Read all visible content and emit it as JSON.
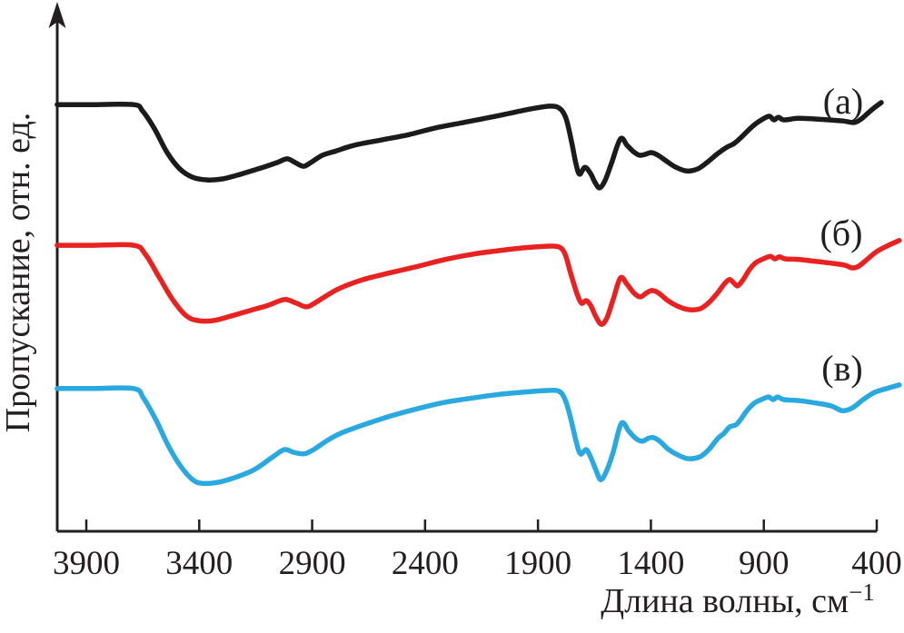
{
  "chart_data": {
    "type": "line",
    "title": "",
    "xlabel_main": "Длина волны, см",
    "xlabel_sup": "−1",
    "ylabel": "Пропускание, отн. ед.",
    "x_ticks": [
      3900,
      3400,
      2900,
      2400,
      1900,
      1400,
      900,
      400
    ],
    "xlim": [
      4030,
      300
    ],
    "ylim": [
      0,
      100
    ],
    "grid": false,
    "legend_position": "none",
    "axis_color": "#231f20",
    "series": [
      {
        "name": "spectrum-a",
        "label": "(а)",
        "color": "#1b1b1b",
        "label_w": 549,
        "label_t": 79.3,
        "points": [
          [
            4029,
            81
          ],
          [
            3880,
            81
          ],
          [
            3691,
            81
          ],
          [
            3651,
            79.8
          ],
          [
            3598,
            76.4
          ],
          [
            3542,
            71.9
          ],
          [
            3486,
            68.8
          ],
          [
            3429,
            67.2
          ],
          [
            3365,
            66.7
          ],
          [
            3297,
            66.9
          ],
          [
            3216,
            67.8
          ],
          [
            3124,
            69
          ],
          [
            3055,
            70
          ],
          [
            3011,
            70.7
          ],
          [
            2975,
            70
          ],
          [
            2939,
            69.3
          ],
          [
            2906,
            70
          ],
          [
            2854,
            71.4
          ],
          [
            2794,
            72.2
          ],
          [
            2713,
            73.3
          ],
          [
            2592,
            74.3
          ],
          [
            2472,
            75.3
          ],
          [
            2351,
            76.6
          ],
          [
            2230,
            77.6
          ],
          [
            2110,
            78.6
          ],
          [
            2009,
            79.5
          ],
          [
            1929,
            80.2
          ],
          [
            1848,
            80.7
          ],
          [
            1804,
            80.3
          ],
          [
            1776,
            78.4
          ],
          [
            1752,
            74.1
          ],
          [
            1732,
            69.8
          ],
          [
            1716,
            67.8
          ],
          [
            1692,
            69.1
          ],
          [
            1667,
            67.9
          ],
          [
            1647,
            66.2
          ],
          [
            1627,
            65.2
          ],
          [
            1603,
            66.6
          ],
          [
            1575,
            69.8
          ],
          [
            1535,
            74.5
          ],
          [
            1506,
            73.3
          ],
          [
            1478,
            72.1
          ],
          [
            1450,
            71.4
          ],
          [
            1422,
            71.6
          ],
          [
            1398,
            71.9
          ],
          [
            1369,
            71.4
          ],
          [
            1329,
            70.2
          ],
          [
            1289,
            69.1
          ],
          [
            1241,
            68.4
          ],
          [
            1193,
            68.8
          ],
          [
            1152,
            70
          ],
          [
            1104,
            71.7
          ],
          [
            1064,
            72.9
          ],
          [
            1032,
            73.6
          ],
          [
            1000,
            74.8
          ],
          [
            967,
            76.2
          ],
          [
            935,
            77.4
          ],
          [
            903,
            78.3
          ],
          [
            875,
            78.8
          ],
          [
            855,
            78.1
          ],
          [
            835,
            78.6
          ],
          [
            811,
            78.1
          ],
          [
            750,
            78.4
          ],
          [
            682,
            78.3
          ],
          [
            613,
            78.1
          ],
          [
            549,
            77.9
          ],
          [
            500,
            77.6
          ],
          [
            468,
            78.3
          ],
          [
            436,
            79.5
          ],
          [
            408,
            80.5
          ],
          [
            380,
            81.4
          ]
        ]
      },
      {
        "name": "spectrum-b",
        "label": "(б)",
        "color": "#e82220",
        "label_w": 557,
        "label_t": 54.3,
        "points": [
          [
            4029,
            54.3
          ],
          [
            3880,
            54.3
          ],
          [
            3691,
            54.3
          ],
          [
            3639,
            52.6
          ],
          [
            3578,
            48.3
          ],
          [
            3518,
            44
          ],
          [
            3457,
            40.9
          ],
          [
            3405,
            40
          ],
          [
            3337,
            40
          ],
          [
            3256,
            40.9
          ],
          [
            3176,
            41.9
          ],
          [
            3095,
            42.9
          ],
          [
            3023,
            44
          ],
          [
            2975,
            43.4
          ],
          [
            2926,
            42.6
          ],
          [
            2886,
            43.4
          ],
          [
            2834,
            44.8
          ],
          [
            2774,
            46.2
          ],
          [
            2673,
            47.8
          ],
          [
            2552,
            49.1
          ],
          [
            2432,
            50.3
          ],
          [
            2311,
            51.6
          ],
          [
            2190,
            52.6
          ],
          [
            2070,
            53.3
          ],
          [
            1969,
            53.8
          ],
          [
            1868,
            54.1
          ],
          [
            1808,
            54
          ],
          [
            1780,
            52.6
          ],
          [
            1756,
            49.1
          ],
          [
            1728,
            45.2
          ],
          [
            1707,
            43.3
          ],
          [
            1687,
            43.8
          ],
          [
            1667,
            42.9
          ],
          [
            1643,
            40.7
          ],
          [
            1619,
            39.3
          ],
          [
            1595,
            40.5
          ],
          [
            1567,
            44
          ],
          [
            1535,
            48.1
          ],
          [
            1506,
            46.9
          ],
          [
            1474,
            45.2
          ],
          [
            1446,
            44.5
          ],
          [
            1418,
            45.3
          ],
          [
            1394,
            45.7
          ],
          [
            1365,
            45.2
          ],
          [
            1325,
            43.8
          ],
          [
            1285,
            42.8
          ],
          [
            1237,
            42.1
          ],
          [
            1185,
            42.2
          ],
          [
            1144,
            43.4
          ],
          [
            1104,
            45.3
          ],
          [
            1076,
            46.9
          ],
          [
            1052,
            47.8
          ],
          [
            1032,
            47.1
          ],
          [
            1015,
            46.6
          ],
          [
            991,
            47.8
          ],
          [
            963,
            49.7
          ],
          [
            935,
            51
          ],
          [
            903,
            51.7
          ],
          [
            871,
            52.2
          ],
          [
            851,
            51.7
          ],
          [
            831,
            52.1
          ],
          [
            803,
            51.7
          ],
          [
            742,
            51.6
          ],
          [
            662,
            51.2
          ],
          [
            601,
            50.9
          ],
          [
            541,
            50.5
          ],
          [
            509,
            50
          ],
          [
            481,
            50.3
          ],
          [
            440,
            51.7
          ],
          [
            400,
            53.1
          ],
          [
            348,
            54.3
          ],
          [
            300,
            55.2
          ]
        ]
      },
      {
        "name": "spectrum-v",
        "label": "(в)",
        "color": "#2aa9e0",
        "label_w": 553,
        "label_t": 28.6,
        "points": [
          [
            4029,
            27.1
          ],
          [
            3880,
            27.1
          ],
          [
            3691,
            27.1
          ],
          [
            3647,
            25.3
          ],
          [
            3590,
            21
          ],
          [
            3534,
            16
          ],
          [
            3478,
            12.1
          ],
          [
            3429,
            9.8
          ],
          [
            3389,
            9.1
          ],
          [
            3317,
            9.3
          ],
          [
            3236,
            10.3
          ],
          [
            3156,
            11.7
          ],
          [
            3075,
            14.1
          ],
          [
            3023,
            15.5
          ],
          [
            2983,
            15
          ],
          [
            2935,
            14.7
          ],
          [
            2894,
            15.5
          ],
          [
            2834,
            17.2
          ],
          [
            2774,
            18.6
          ],
          [
            2673,
            20.2
          ],
          [
            2552,
            21.9
          ],
          [
            2432,
            23.3
          ],
          [
            2311,
            24.5
          ],
          [
            2190,
            25.3
          ],
          [
            2070,
            26
          ],
          [
            1969,
            26.4
          ],
          [
            1868,
            26.7
          ],
          [
            1808,
            26.6
          ],
          [
            1780,
            25
          ],
          [
            1756,
            21.6
          ],
          [
            1732,
            17.2
          ],
          [
            1712,
            14.7
          ],
          [
            1687,
            15.5
          ],
          [
            1667,
            14.1
          ],
          [
            1643,
            11.6
          ],
          [
            1623,
            9.8
          ],
          [
            1599,
            11.2
          ],
          [
            1567,
            15
          ],
          [
            1531,
            20.5
          ],
          [
            1498,
            19
          ],
          [
            1466,
            17.6
          ],
          [
            1438,
            17.1
          ],
          [
            1414,
            17.6
          ],
          [
            1390,
            17.8
          ],
          [
            1361,
            17.1
          ],
          [
            1321,
            15.5
          ],
          [
            1281,
            14.5
          ],
          [
            1237,
            13.8
          ],
          [
            1185,
            14.1
          ],
          [
            1144,
            15.5
          ],
          [
            1104,
            17.6
          ],
          [
            1076,
            18.6
          ],
          [
            1052,
            19.8
          ],
          [
            1024,
            20.2
          ],
          [
            1003,
            21.2
          ],
          [
            975,
            22.9
          ],
          [
            943,
            24.3
          ],
          [
            911,
            25
          ],
          [
            879,
            25.5
          ],
          [
            859,
            25
          ],
          [
            839,
            25.5
          ],
          [
            811,
            25
          ],
          [
            742,
            24.8
          ],
          [
            662,
            24.3
          ],
          [
            601,
            23.8
          ],
          [
            553,
            22.9
          ],
          [
            509,
            23.4
          ],
          [
            460,
            25
          ],
          [
            408,
            26.4
          ],
          [
            348,
            27.2
          ],
          [
            300,
            27.8
          ]
        ]
      }
    ]
  }
}
